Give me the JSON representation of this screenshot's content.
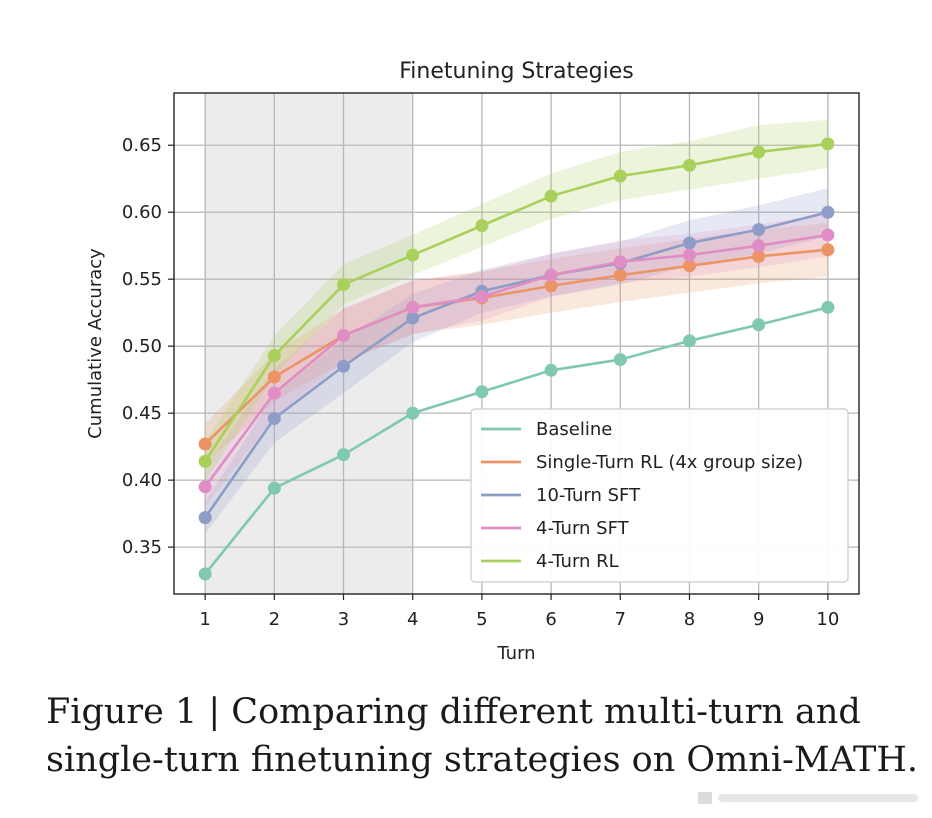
{
  "chart_data": {
    "type": "line",
    "title": "Finetuning Strategies",
    "xlabel": "Turn",
    "ylabel": "Cumulative Accuracy",
    "x": [
      1,
      2,
      3,
      4,
      5,
      6,
      7,
      8,
      9,
      10
    ],
    "xlim": [
      0.55,
      10.45
    ],
    "ylim": [
      0.315,
      0.689
    ],
    "xticks": [
      "1",
      "2",
      "3",
      "4",
      "5",
      "6",
      "7",
      "8",
      "9",
      "10"
    ],
    "yticks": [
      "0.35",
      "0.40",
      "0.45",
      "0.50",
      "0.55",
      "0.60",
      "0.65"
    ],
    "grid": true,
    "shaded_x_range": [
      1,
      4
    ],
    "legend_position": "lower-right",
    "series": [
      {
        "name": "Baseline",
        "color": "#7fc9ae",
        "values": [
          0.33,
          0.394,
          0.419,
          0.45,
          0.466,
          0.482,
          0.49,
          0.504,
          0.516,
          0.529
        ],
        "band": null
      },
      {
        "name": "Single-Turn RL (4x group size)",
        "color": "#ec9466",
        "values": [
          0.427,
          0.477,
          0.508,
          0.529,
          0.536,
          0.545,
          0.553,
          0.56,
          0.567,
          0.572
        ],
        "band": [
          0.015,
          0.018,
          0.02,
          0.02,
          0.02,
          0.02,
          0.02,
          0.02,
          0.02,
          0.02
        ]
      },
      {
        "name": "10-Turn SFT",
        "color": "#8d9dc8",
        "values": [
          0.372,
          0.446,
          0.485,
          0.521,
          0.541,
          0.553,
          0.562,
          0.577,
          0.587,
          0.6
        ],
        "band": [
          0.012,
          0.018,
          0.02,
          0.018,
          0.016,
          0.016,
          0.016,
          0.017,
          0.018,
          0.018
        ]
      },
      {
        "name": "4-Turn SFT",
        "color": "#e08dc6",
        "values": [
          0.395,
          0.465,
          0.508,
          0.529,
          0.537,
          0.553,
          0.563,
          0.568,
          0.575,
          0.583
        ],
        "band": [
          0.015,
          0.018,
          0.02,
          0.02,
          0.018,
          0.016,
          0.016,
          0.016,
          0.016,
          0.016
        ]
      },
      {
        "name": "4-Turn RL",
        "color": "#a8d05a",
        "values": [
          0.414,
          0.493,
          0.546,
          0.568,
          0.59,
          0.612,
          0.627,
          0.635,
          0.645,
          0.651
        ],
        "band": [
          0.015,
          0.015,
          0.015,
          0.015,
          0.016,
          0.017,
          0.018,
          0.018,
          0.02,
          0.018
        ]
      }
    ]
  },
  "caption": {
    "line1": "Figure 1 | Comparing different multi-turn and",
    "line2": "single-turn finetuning strategies on Omni-MATH."
  }
}
